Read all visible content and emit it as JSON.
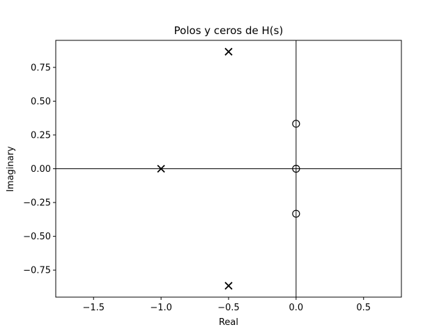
{
  "chart_data": {
    "type": "scatter",
    "title": "Polos y ceros de H(s)",
    "xlabel": "Real",
    "ylabel": "Imaginary",
    "xlim": [
      -1.78,
      0.78
    ],
    "ylim": [
      -0.95,
      0.95
    ],
    "x_ticks": [
      -1.5,
      -1.0,
      -0.5,
      0.0,
      0.5
    ],
    "x_tick_labels": [
      "−1.5",
      "−1.0",
      "−0.5",
      "0.0",
      "0.5"
    ],
    "y_ticks": [
      0.75,
      0.5,
      0.25,
      0.0,
      -0.25,
      -0.5,
      -0.75
    ],
    "y_tick_labels": [
      "0.75",
      "0.50",
      "0.25",
      "0.00",
      "−0.25",
      "−0.50",
      "−0.75"
    ],
    "grid": false,
    "reference_lines": {
      "x": 0,
      "y": 0
    },
    "series": [
      {
        "marker": "x",
        "color": "#000000",
        "points": [
          {
            "x": -0.5,
            "y": 0.866
          },
          {
            "x": -1.0,
            "y": 0.0
          },
          {
            "x": -0.5,
            "y": -0.866
          }
        ]
      },
      {
        "marker": "o",
        "color": "#000000",
        "points": [
          {
            "x": 0.0,
            "y": 0.333
          },
          {
            "x": 0.0,
            "y": 0.0
          },
          {
            "x": 0.0,
            "y": -0.333
          }
        ]
      }
    ]
  }
}
